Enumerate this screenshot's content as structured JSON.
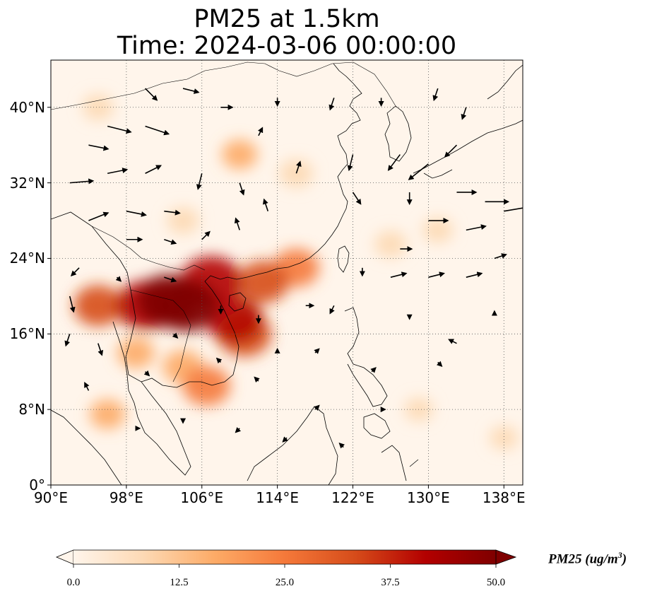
{
  "title": {
    "line1": "PM25 at 1.5km",
    "line2": "Time: 2024-03-06 00:00:00"
  },
  "map": {
    "lon_range": [
      90,
      140
    ],
    "lat_range": [
      0,
      45
    ],
    "lat_ticks": [
      {
        "value": 0,
        "label": "0°"
      },
      {
        "value": 8,
        "label": "8°N"
      },
      {
        "value": 16,
        "label": "16°N"
      },
      {
        "value": 24,
        "label": "24°N"
      },
      {
        "value": 32,
        "label": "32°N"
      },
      {
        "value": 40,
        "label": "40°N"
      }
    ],
    "lon_ticks": [
      {
        "value": 90,
        "label": "90°E"
      },
      {
        "value": 98,
        "label": "98°E"
      },
      {
        "value": 106,
        "label": "106°E"
      },
      {
        "value": 114,
        "label": "114°E"
      },
      {
        "value": 122,
        "label": "122°E"
      },
      {
        "value": 130,
        "label": "130°E"
      },
      {
        "value": 138,
        "label": "138°E"
      }
    ],
    "gridlines": "dotted",
    "pm25_hotspots": [
      {
        "lon": 100,
        "lat": 19,
        "value": 42
      },
      {
        "lon": 102.5,
        "lat": 19.5,
        "value": 48
      },
      {
        "lon": 104.5,
        "lat": 19,
        "value": 46
      },
      {
        "lon": 107,
        "lat": 21.5,
        "value": 45
      },
      {
        "lon": 109.5,
        "lat": 17.5,
        "value": 38
      },
      {
        "lon": 110.5,
        "lat": 16,
        "value": 36
      },
      {
        "lon": 112.5,
        "lat": 21.5,
        "value": 32
      },
      {
        "lon": 116,
        "lat": 23,
        "value": 26
      },
      {
        "lon": 95,
        "lat": 19,
        "value": 30
      },
      {
        "lon": 106.5,
        "lat": 10.5,
        "value": 28
      },
      {
        "lon": 104,
        "lat": 12.5,
        "value": 20
      },
      {
        "lon": 99,
        "lat": 14,
        "value": 16
      },
      {
        "lon": 96,
        "lat": 7.5,
        "value": 14
      },
      {
        "lon": 110,
        "lat": 35,
        "value": 14
      },
      {
        "lon": 116,
        "lat": 33,
        "value": 12
      },
      {
        "lon": 95,
        "lat": 40,
        "value": 9
      },
      {
        "lon": 104,
        "lat": 28,
        "value": 10
      },
      {
        "lon": 126,
        "lat": 25.5,
        "value": 10
      },
      {
        "lon": 131,
        "lat": 27,
        "value": 8
      },
      {
        "lon": 129,
        "lat": 8,
        "value": 6
      },
      {
        "lon": 138,
        "lat": 5,
        "value": 6
      }
    ],
    "wind_vectors": [
      [
        92,
        32,
        6,
        0.5
      ],
      [
        94,
        36,
        5,
        -1
      ],
      [
        96,
        38,
        6,
        -1.5
      ],
      [
        100,
        38,
        6,
        -2
      ],
      [
        96,
        33,
        5,
        1
      ],
      [
        100,
        33,
        4,
        2
      ],
      [
        94,
        28,
        5,
        2
      ],
      [
        98,
        29,
        5,
        -1
      ],
      [
        102,
        29,
        4,
        -0.5
      ],
      [
        98,
        26,
        4,
        0
      ],
      [
        102,
        26,
        3,
        -1
      ],
      [
        106,
        26,
        2,
        2
      ],
      [
        110,
        27,
        -1,
        3
      ],
      [
        113,
        29,
        -1,
        3
      ],
      [
        116,
        33,
        1,
        3
      ],
      [
        110,
        32,
        1,
        -3
      ],
      [
        106,
        33,
        -1,
        -4
      ],
      [
        112,
        37,
        1,
        2
      ],
      [
        100,
        42,
        3,
        -3
      ],
      [
        104,
        42,
        4,
        -1
      ],
      [
        108,
        40,
        3,
        0
      ],
      [
        114,
        41,
        0,
        -2
      ],
      [
        120,
        41,
        -1,
        -3
      ],
      [
        125,
        41,
        0,
        -2
      ],
      [
        131,
        42,
        -1,
        -3
      ],
      [
        134,
        40,
        -1,
        -3
      ],
      [
        133,
        36,
        -3,
        -3
      ],
      [
        130,
        34,
        -5,
        -4
      ],
      [
        127,
        35,
        -3,
        -4
      ],
      [
        122,
        35,
        -1,
        -4
      ],
      [
        122,
        31,
        2,
        -3
      ],
      [
        128,
        31,
        0,
        -3
      ],
      [
        133,
        31,
        5,
        0
      ],
      [
        136,
        30,
        6,
        0
      ],
      [
        138,
        29,
        6,
        1
      ],
      [
        134,
        27,
        5,
        1
      ],
      [
        130,
        28,
        5,
        0
      ],
      [
        127,
        25,
        3,
        0
      ],
      [
        123,
        23,
        0,
        -2
      ],
      [
        126,
        22,
        4,
        1
      ],
      [
        130,
        22,
        4,
        1
      ],
      [
        134,
        22,
        4,
        1
      ],
      [
        137,
        24,
        3,
        1
      ],
      [
        128,
        18,
        0,
        -1
      ],
      [
        133,
        15,
        -2,
        1
      ],
      [
        137,
        18,
        0,
        1
      ],
      [
        131,
        13,
        1,
        -1
      ],
      [
        120,
        19,
        -1,
        -2
      ],
      [
        117,
        19,
        2,
        0
      ],
      [
        118,
        14,
        1,
        1
      ],
      [
        124,
        12,
        1,
        1
      ],
      [
        125,
        8,
        1,
        0
      ],
      [
        118,
        8,
        1,
        1
      ],
      [
        121,
        4,
        -1,
        1
      ],
      [
        115,
        5,
        -1,
        -1
      ],
      [
        110,
        6,
        -1,
        -1
      ],
      [
        104,
        7,
        0,
        -1
      ],
      [
        99,
        6,
        1,
        0
      ],
      [
        94,
        10,
        -1,
        2
      ],
      [
        95,
        15,
        1,
        -3
      ],
      [
        92,
        20,
        1,
        -4
      ],
      [
        93,
        23,
        -2,
        -2
      ],
      [
        92,
        16,
        -1,
        -3
      ],
      [
        97,
        22,
        1,
        -1
      ],
      [
        102,
        22,
        3,
        -1
      ],
      [
        108,
        13,
        -1,
        1
      ],
      [
        112,
        11,
        -1,
        1
      ],
      [
        114,
        14,
        0,
        1
      ],
      [
        112,
        18,
        0,
        -2
      ],
      [
        108,
        19,
        0,
        -2
      ],
      [
        103,
        16,
        1,
        -1
      ],
      [
        100,
        12,
        1,
        -1
      ]
    ]
  },
  "colorbar": {
    "label_text": "PM25 (ug/m",
    "label_exponent": "3",
    "label_close": ")",
    "min": 0,
    "max": 50,
    "extend": "both",
    "ticks": [
      "0.0",
      "12.5",
      "25.0",
      "37.5",
      "50.0"
    ],
    "colors": [
      "#fff5eb",
      "#fdd9b4",
      "#fdab67",
      "#f5793a",
      "#d64c1a",
      "#b30000",
      "#7f0000"
    ]
  }
}
